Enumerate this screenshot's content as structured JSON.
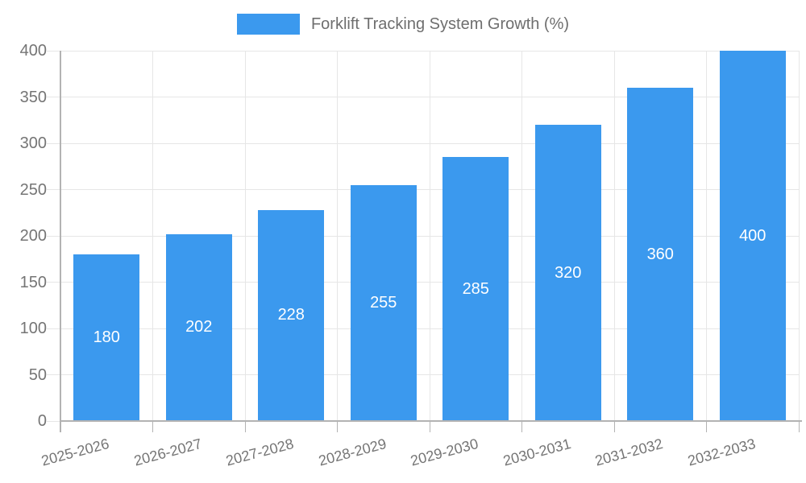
{
  "chart_data": {
    "type": "bar",
    "title": "Forklift Tracking System Growth (%)",
    "legend_position": "top",
    "categories": [
      "2025-2026",
      "2026-2027",
      "2027-2028",
      "2028-2029",
      "2029-2030",
      "2030-2031",
      "2031-2032",
      "2032-2033"
    ],
    "series": [
      {
        "name": "Forklift Tracking System Growth (%)",
        "values": [
          180,
          202,
          228,
          255,
          285,
          320,
          360,
          400
        ]
      }
    ],
    "xlabel": "",
    "ylabel": "",
    "ylim": [
      0,
      400
    ],
    "ytick_step": 50,
    "yticks": [
      0,
      50,
      100,
      150,
      200,
      250,
      300,
      350,
      400
    ],
    "grid": "horizontal-and-vertical",
    "bar_value_labels": "inside-center",
    "x_label_rotation_deg": -15,
    "colors": {
      "bar": "#3B99EE",
      "bar_label": "#FFFFFF",
      "grid": "#E6E6E6",
      "axis": "#B3B3B3",
      "tick_label": "#757575",
      "legend_text": "#6E6E6E",
      "background": "#FFFFFF"
    }
  }
}
